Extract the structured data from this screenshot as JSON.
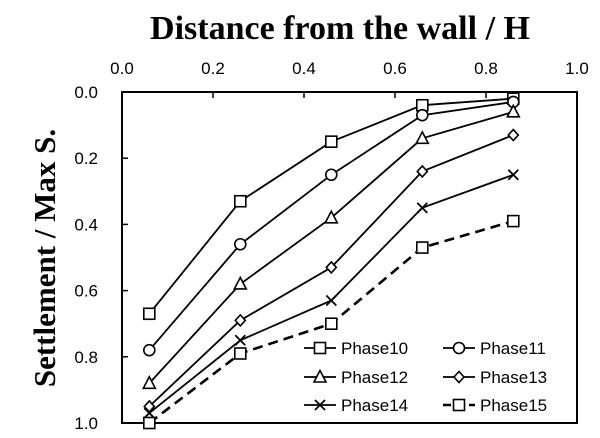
{
  "chart_data": {
    "type": "line",
    "title": "Distance from the wall / H",
    "xlabel": "Distance from the wall / H",
    "ylabel": "Settlement / Max S.",
    "xlim": [
      0.0,
      1.0
    ],
    "ylim": [
      0.0,
      1.0
    ],
    "y_inverted": true,
    "x_axis_position": "top",
    "grid": false,
    "legend_position": "bottom-right",
    "x_ticks": [
      "0.0",
      "0.2",
      "0.4",
      "0.6",
      "0.8",
      "1.0"
    ],
    "y_ticks": [
      "0.0",
      "0.2",
      "0.4",
      "0.6",
      "0.8",
      "1.0"
    ],
    "x": [
      0.06,
      0.26,
      0.46,
      0.66,
      0.86
    ],
    "series": [
      {
        "name": "Phase10",
        "marker": "square",
        "dashed": false,
        "values": [
          0.67,
          0.33,
          0.15,
          0.04,
          0.02
        ]
      },
      {
        "name": "Phase11",
        "marker": "circle",
        "dashed": false,
        "values": [
          0.78,
          0.46,
          0.25,
          0.07,
          0.03
        ]
      },
      {
        "name": "Phase12",
        "marker": "triangle",
        "dashed": false,
        "values": [
          0.88,
          0.58,
          0.38,
          0.14,
          0.06
        ]
      },
      {
        "name": "Phase13",
        "marker": "diamond",
        "dashed": false,
        "values": [
          0.95,
          0.69,
          0.53,
          0.24,
          0.13
        ]
      },
      {
        "name": "Phase14",
        "marker": "cross",
        "dashed": false,
        "values": [
          0.97,
          0.75,
          0.63,
          0.35,
          0.25
        ]
      },
      {
        "name": "Phase15",
        "marker": "square",
        "dashed": true,
        "values": [
          1.0,
          0.79,
          0.7,
          0.47,
          0.39
        ]
      }
    ]
  }
}
